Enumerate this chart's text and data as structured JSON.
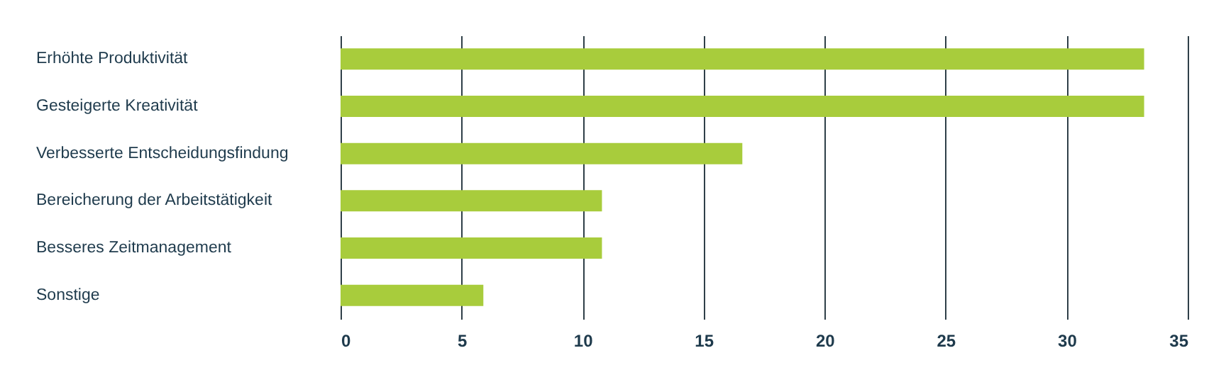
{
  "chart_data": {
    "type": "bar",
    "orientation": "horizontal",
    "categories": [
      "Erhöhte Produktivität",
      "Gesteigerte Kreativität",
      "Verbesserte Entscheidungsfindung",
      "Bereicherung der Arbeitstätigkeit",
      "Besseres Zeitmanagement",
      "Sonstige"
    ],
    "values": [
      33.2,
      33.2,
      16.6,
      10.8,
      10.8,
      5.9
    ],
    "color": "#a8cc3c",
    "xlim": [
      0,
      35
    ],
    "xticks": [
      0,
      5,
      10,
      15,
      20,
      25,
      30,
      35
    ],
    "grid": "x"
  }
}
